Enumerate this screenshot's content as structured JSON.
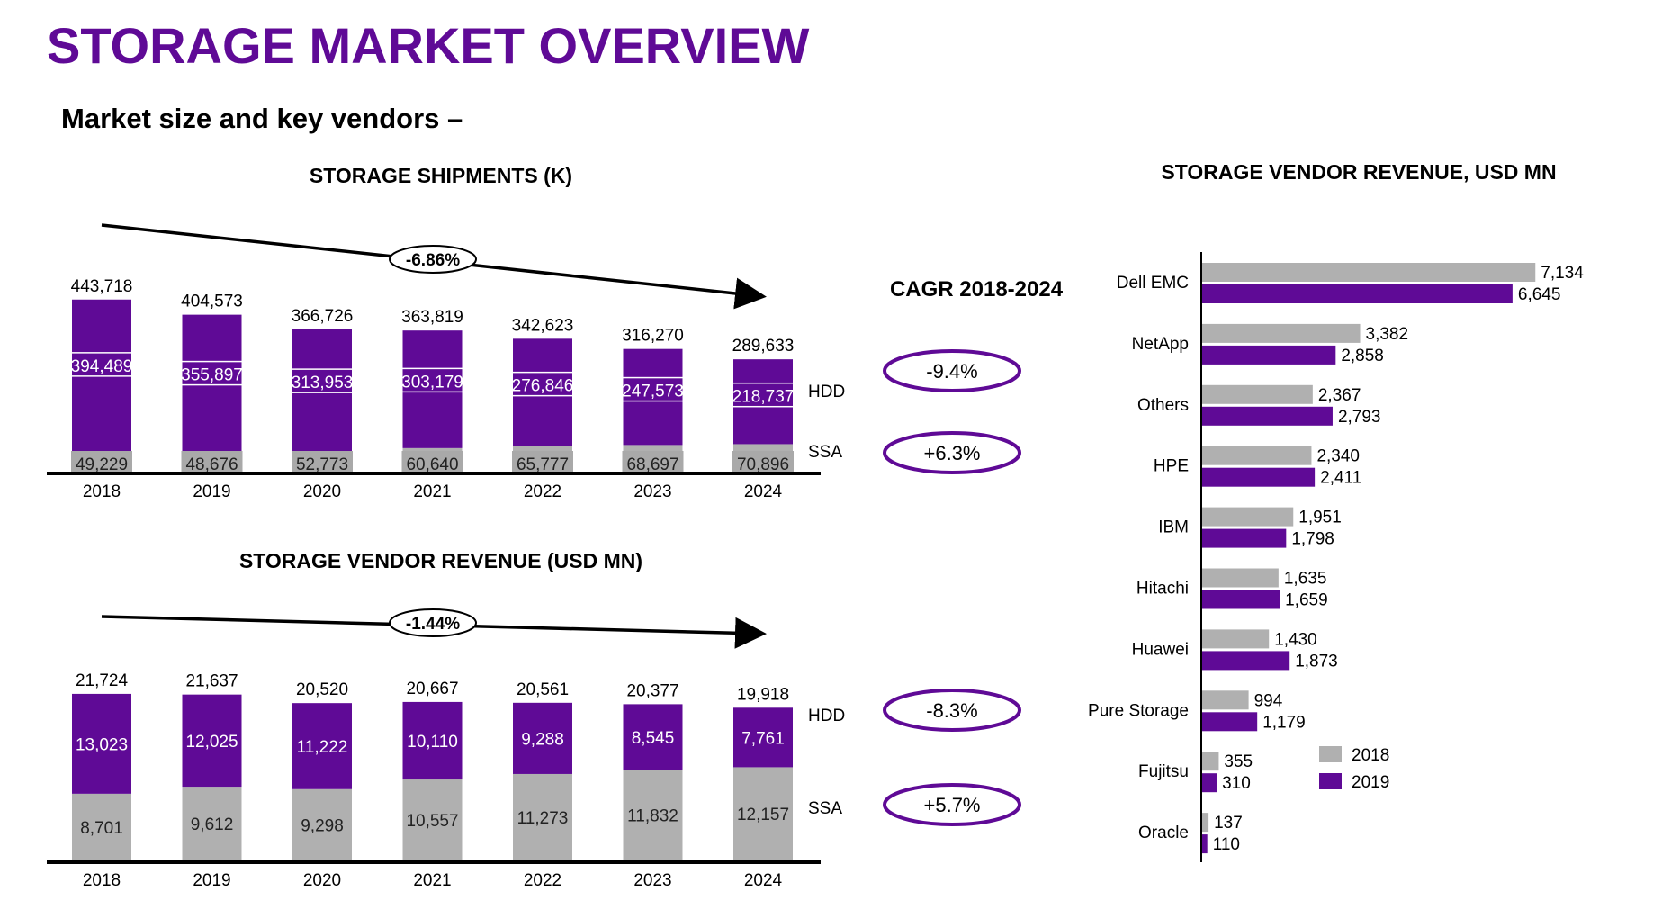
{
  "page": {
    "title": "STORAGE MARKET OVERVIEW",
    "subtitle": "Market size and key vendors –"
  },
  "colors": {
    "hdd": "#5f0a96",
    "ssa": "#b0b0b0",
    "title": "#5f0a96"
  },
  "cagr": {
    "heading": "CAGR 2018-2024"
  },
  "chart_data": [
    {
      "type": "bar",
      "stacked": true,
      "title": "STORAGE SHIPMENTS (K)",
      "categories": [
        "2018",
        "2019",
        "2020",
        "2021",
        "2022",
        "2023",
        "2024"
      ],
      "series": [
        {
          "name": "SSA",
          "values": [
            49229,
            48676,
            52773,
            60640,
            65777,
            68697,
            70896
          ],
          "labels": [
            "49,229",
            "48,676",
            "52,773",
            "60,640",
            "65,777",
            "68,697",
            "70,896"
          ]
        },
        {
          "name": "HDD",
          "values": [
            394489,
            355897,
            313953,
            303179,
            276846,
            247573,
            218737
          ],
          "labels": [
            "394,489",
            "355,897",
            "313,953",
            "303,179",
            "276,846",
            "247,573",
            "218,737"
          ]
        }
      ],
      "totals": [
        "443,718",
        "404,573",
        "366,726",
        "363,819",
        "342,623",
        "316,270",
        "289,633"
      ],
      "trend_label": "-6.86%",
      "cagr": {
        "HDD": "-9.4%",
        "SSA": "+6.3%"
      }
    },
    {
      "type": "bar",
      "stacked": true,
      "title": "STORAGE VENDOR REVENUE (USD MN)",
      "categories": [
        "2018",
        "2019",
        "2020",
        "2021",
        "2022",
        "2023",
        "2024"
      ],
      "series": [
        {
          "name": "SSA",
          "values": [
            8701,
            9612,
            9298,
            10557,
            11273,
            11832,
            12157
          ],
          "labels": [
            "8,701",
            "9,612",
            "9,298",
            "10,557",
            "11,273",
            "11,832",
            "12,157"
          ]
        },
        {
          "name": "HDD",
          "values": [
            13023,
            12025,
            11222,
            10110,
            9288,
            8545,
            7761
          ],
          "labels": [
            "13,023",
            "12,025",
            "11,222",
            "10,110",
            "9,288",
            "8,545",
            "7,761"
          ]
        }
      ],
      "totals": [
        "21,724",
        "21,637",
        "20,520",
        "20,667",
        "20,561",
        "20,377",
        "19,918"
      ],
      "trend_label": "-1.44%",
      "cagr": {
        "HDD": "-8.3%",
        "SSA": "+5.7%"
      }
    },
    {
      "type": "bar",
      "orientation": "horizontal",
      "title": "STORAGE  VENDOR REVENUE, USD MN",
      "categories": [
        "Dell EMC",
        "NetApp",
        "Others",
        "HPE",
        "IBM",
        "Hitachi",
        "Huawei",
        "Pure Storage",
        "Fujitsu",
        "Oracle"
      ],
      "series": [
        {
          "name": "2018",
          "values": [
            7134,
            3382,
            2367,
            2340,
            1951,
            1635,
            1430,
            994,
            355,
            137
          ],
          "labels": [
            "7,134",
            "3,382",
            "2,367",
            "2,340",
            "1,951",
            "1,635",
            "1,430",
            "994",
            "355",
            "137"
          ]
        },
        {
          "name": "2019",
          "values": [
            6645,
            2858,
            2793,
            2411,
            1798,
            1659,
            1873,
            1179,
            310,
            110
          ],
          "labels": [
            "6,645",
            "2,858",
            "2,793",
            "2,411",
            "1,798",
            "1,659",
            "1,873",
            "1,179",
            "310",
            "110"
          ]
        }
      ],
      "legend": "right"
    }
  ]
}
